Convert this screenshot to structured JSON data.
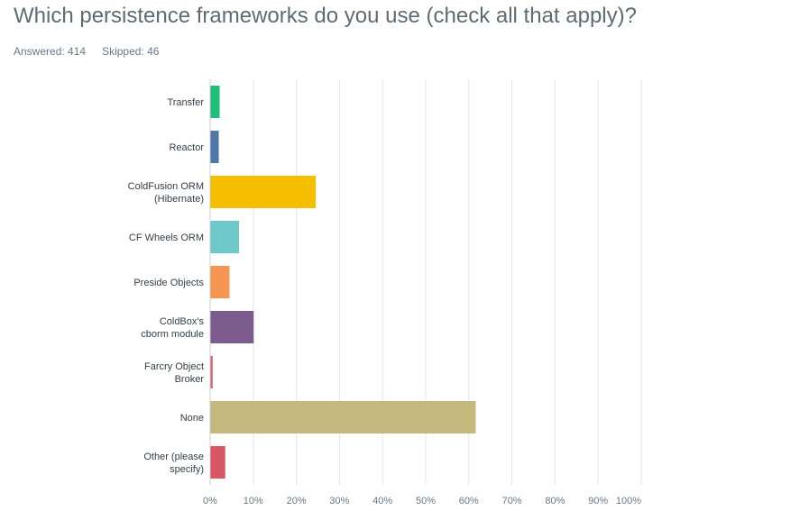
{
  "question": {
    "title": "Which persistence frameworks do you use (check all that apply)?",
    "answered_label": "Answered: 414",
    "skipped_label": "Skipped: 46"
  },
  "chart_data": {
    "type": "bar",
    "orientation": "horizontal",
    "categories": [
      "Transfer",
      "Reactor",
      "ColdFusion ORM (Hibernate)",
      "CF Wheels ORM",
      "Preside Objects",
      "ColdBox's cborm module",
      "Farcry Object Broker",
      "None",
      "Other (please specify)"
    ],
    "category_lines": [
      [
        "Transfer"
      ],
      [
        "Reactor"
      ],
      [
        "ColdFusion ORM",
        "(Hibernate)"
      ],
      [
        "CF Wheels ORM"
      ],
      [
        "Preside Objects"
      ],
      [
        "ColdBox's",
        "cborm module"
      ],
      [
        "Farcry Object",
        "Broker"
      ],
      [
        "None"
      ],
      [
        "Other (please",
        "specify)"
      ]
    ],
    "values": [
      2.2,
      2.0,
      24.5,
      6.7,
      4.5,
      10.1,
      0.6,
      61.6,
      3.5
    ],
    "colors": [
      "#1fbf75",
      "#4f77aa",
      "#f5bf00",
      "#6dc9c9",
      "#f79553",
      "#7d5b8c",
      "#d26a7a",
      "#c4b87d",
      "#d95765"
    ],
    "xlim": [
      0,
      100
    ],
    "x_ticks": [
      "0%",
      "10%",
      "20%",
      "30%",
      "40%",
      "50%",
      "60%",
      "70%",
      "80%",
      "90%",
      "100%"
    ],
    "grid": true,
    "xlabel": "",
    "ylabel": ""
  }
}
